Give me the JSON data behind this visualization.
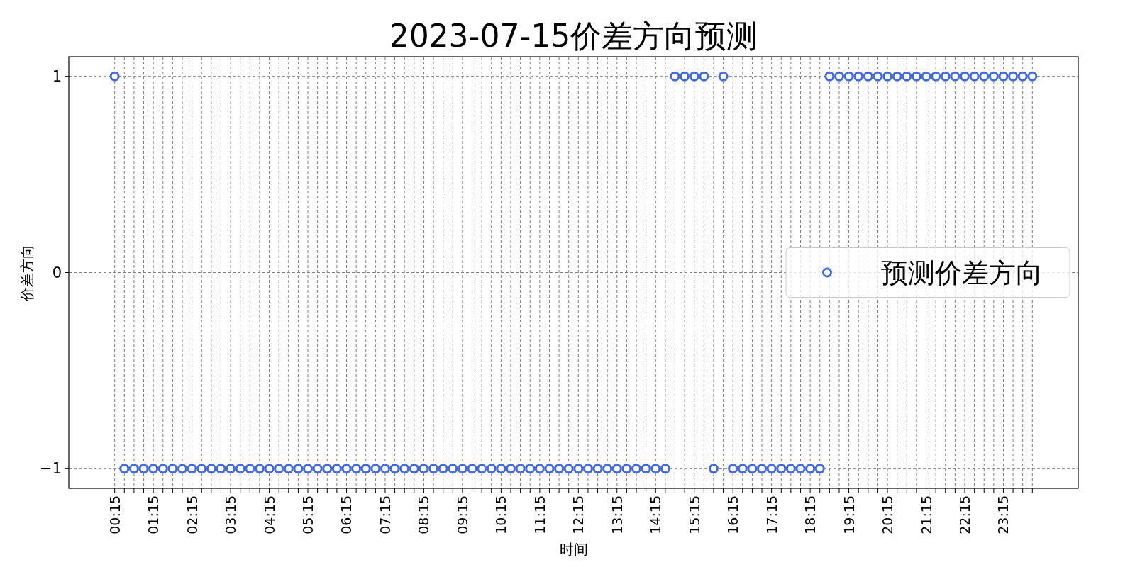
{
  "chart_data": {
    "type": "scatter",
    "title": "2023-07-15价差方向预测",
    "xlabel": "时间",
    "ylabel": "价差方向",
    "categories": [
      "00:15",
      null,
      null,
      null,
      "01:15",
      null,
      null,
      null,
      "02:15",
      null,
      null,
      null,
      "03:15",
      null,
      null,
      null,
      "04:15",
      null,
      null,
      null,
      "05:15",
      null,
      null,
      null,
      "06:15",
      null,
      null,
      null,
      "07:15",
      null,
      null,
      null,
      "08:15",
      null,
      null,
      null,
      "09:15",
      null,
      null,
      null,
      "10:15",
      null,
      null,
      null,
      "11:15",
      null,
      null,
      null,
      "12:15",
      null,
      null,
      null,
      "13:15",
      null,
      null,
      null,
      "14:15",
      null,
      null,
      null,
      "15:15",
      null,
      null,
      null,
      "16:15",
      null,
      null,
      null,
      "17:15",
      null,
      null,
      null,
      "18:15",
      null,
      null,
      null,
      "19:15",
      null,
      null,
      null,
      "20:15",
      null,
      null,
      null,
      "21:15",
      null,
      null,
      null,
      "22:15",
      null,
      null,
      null,
      "23:15",
      null,
      null,
      null
    ],
    "series": [
      {
        "name": "预测价差方向",
        "color": "#4169e1",
        "values": [
          1,
          -1,
          -1,
          -1,
          -1,
          -1,
          -1,
          -1,
          -1,
          -1,
          -1,
          -1,
          -1,
          -1,
          -1,
          -1,
          -1,
          -1,
          -1,
          -1,
          -1,
          -1,
          -1,
          -1,
          -1,
          -1,
          -1,
          -1,
          -1,
          -1,
          -1,
          -1,
          -1,
          -1,
          -1,
          -1,
          -1,
          -1,
          -1,
          -1,
          -1,
          -1,
          -1,
          -1,
          -1,
          -1,
          -1,
          -1,
          -1,
          -1,
          -1,
          -1,
          -1,
          -1,
          -1,
          -1,
          -1,
          -1,
          1,
          1,
          1,
          1,
          -1,
          1,
          -1,
          -1,
          -1,
          -1,
          -1,
          -1,
          -1,
          -1,
          -1,
          -1,
          1,
          1,
          1,
          1,
          1,
          1,
          1,
          1,
          1,
          1,
          1,
          1,
          1,
          1,
          1,
          1,
          1,
          1,
          1,
          1,
          1,
          1
        ]
      }
    ],
    "ylim": [
      -1.1,
      1.1
    ],
    "yticks": [
      {
        "value": -1,
        "label": "−1"
      },
      0,
      1
    ],
    "grid": true,
    "legend": "right",
    "marker": "circle"
  }
}
